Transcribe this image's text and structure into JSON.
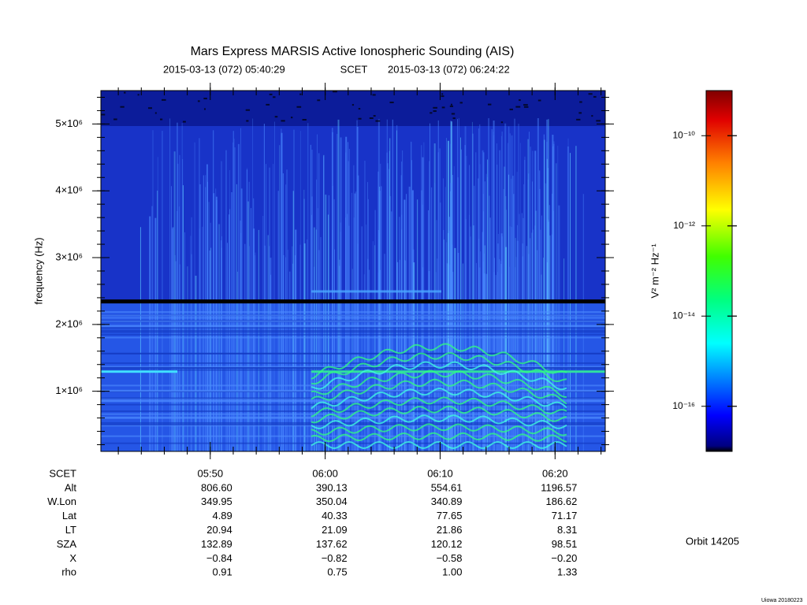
{
  "chart_data": {
    "type": "spectrogram",
    "title": "Mars Express MARSIS Active Ionospheric Sounding (AIS)",
    "time_start": "2015-03-13 (072) 05:40:29",
    "time_label": "SCET",
    "time_end": "2015-03-13 (072) 06:24:22",
    "ylabel": "frequency (Hz)",
    "ylim": [
      100000,
      5500000
    ],
    "yticks": [
      {
        "value": 1000000,
        "label": "1×10⁶"
      },
      {
        "value": 2000000,
        "label": "2×10⁶"
      },
      {
        "value": 3000000,
        "label": "3×10⁶"
      },
      {
        "value": 4000000,
        "label": "4×10⁶"
      },
      {
        "value": 5000000,
        "label": "5×10⁶"
      }
    ],
    "colorbar": {
      "label": "V² m⁻² Hz⁻¹",
      "log": true,
      "lim": [
        1e-17,
        1e-09
      ],
      "ticks": [
        {
          "value": 1e-16,
          "label": "10⁻¹⁶"
        },
        {
          "value": 1e-14,
          "label": "10⁻¹⁴"
        },
        {
          "value": 1e-12,
          "label": "10⁻¹²"
        },
        {
          "value": 1e-10,
          "label": "10⁻¹⁰"
        }
      ]
    }
  },
  "ephemeris": {
    "rows": [
      {
        "label": "SCET",
        "values": [
          "05:50",
          "06:00",
          "06:10",
          "06:20"
        ]
      },
      {
        "label": "Alt",
        "values": [
          "806.60",
          "390.13",
          "554.61",
          "1196.57"
        ]
      },
      {
        "label": "W.Lon",
        "values": [
          "349.95",
          "350.04",
          "340.89",
          "186.62"
        ]
      },
      {
        "label": "Lat",
        "values": [
          "4.89",
          "40.33",
          "77.65",
          "71.17"
        ]
      },
      {
        "label": "LT",
        "values": [
          "20.94",
          "21.09",
          "21.86",
          "8.31"
        ]
      },
      {
        "label": "SZA",
        "values": [
          "132.89",
          "137.62",
          "120.12",
          "98.51"
        ]
      },
      {
        "label": "X",
        "values": [
          "−0.84",
          "−0.82",
          "−0.58",
          "−0.20"
        ]
      },
      {
        "label": "rho",
        "values": [
          "0.91",
          "0.75",
          "1.00",
          "1.33"
        ]
      }
    ]
  },
  "orbit": "Orbit 14205",
  "credit": "Uiowa 20180223"
}
